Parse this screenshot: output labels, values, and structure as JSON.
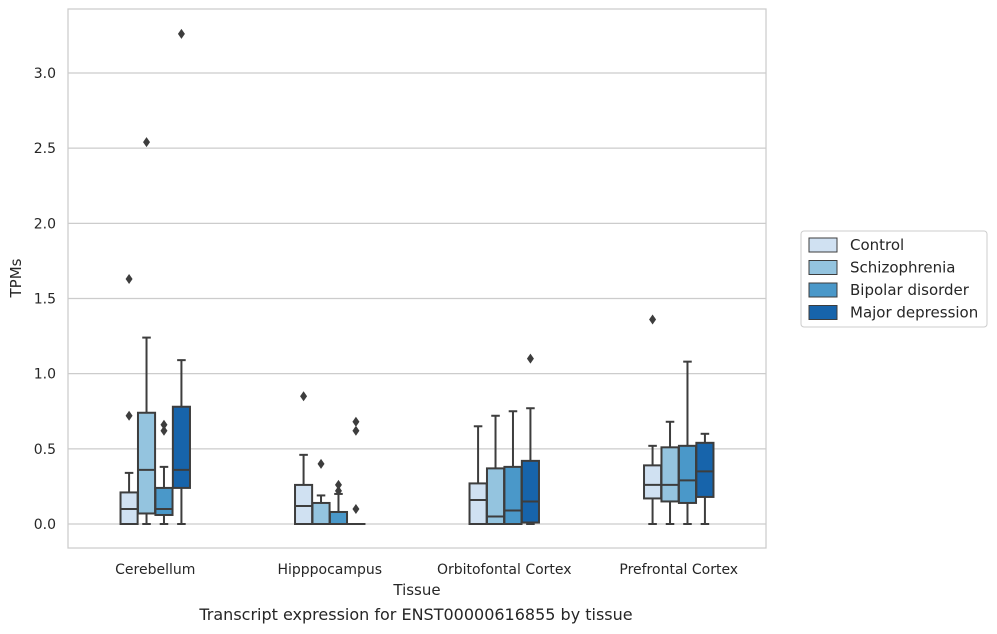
{
  "caption": "Transcript expression for ENST00000616855 by tissue",
  "chart_data": {
    "type": "box",
    "title": "",
    "xlabel": "Tissue",
    "ylabel": "TPMs",
    "ylim": [
      -0.16,
      3.43
    ],
    "yticks": [
      0.0,
      0.5,
      1.0,
      1.5,
      2.0,
      2.5,
      3.0
    ],
    "ytick_labels": [
      "0.0",
      "0.5",
      "1.0",
      "1.5",
      "2.0",
      "2.5",
      "3.0"
    ],
    "grid": "horizontal",
    "legend_position": "right",
    "categories": [
      "Cerebellum",
      "Hipppocampus",
      "Orbitofontal Cortex",
      "Prefrontal Cortex"
    ],
    "series": [
      {
        "name": "Control",
        "color": "#d0e1f2",
        "boxes": [
          {
            "whislo": 0.0,
            "q1": 0.0,
            "med": 0.1,
            "q3": 0.21,
            "whishi": 0.34,
            "fliers": [
              0.72,
              1.63
            ]
          },
          {
            "whislo": 0.0,
            "q1": 0.0,
            "med": 0.12,
            "q3": 0.26,
            "whishi": 0.46,
            "fliers": [
              0.85
            ]
          },
          {
            "whislo": 0.0,
            "q1": 0.0,
            "med": 0.16,
            "q3": 0.27,
            "whishi": 0.65,
            "fliers": []
          },
          {
            "whislo": 0.0,
            "q1": 0.17,
            "med": 0.26,
            "q3": 0.39,
            "whishi": 0.52,
            "fliers": [
              1.36
            ]
          }
        ]
      },
      {
        "name": "Schizophrenia",
        "color": "#94c4df",
        "boxes": [
          {
            "whislo": 0.0,
            "q1": 0.07,
            "med": 0.36,
            "q3": 0.74,
            "whishi": 1.24,
            "fliers": [
              2.54
            ]
          },
          {
            "whislo": 0.0,
            "q1": 0.0,
            "med": 0.0,
            "q3": 0.14,
            "whishi": 0.19,
            "fliers": [
              0.4
            ]
          },
          {
            "whislo": 0.0,
            "q1": 0.0,
            "med": 0.05,
            "q3": 0.37,
            "whishi": 0.72,
            "fliers": []
          },
          {
            "whislo": 0.0,
            "q1": 0.15,
            "med": 0.26,
            "q3": 0.51,
            "whishi": 0.68,
            "fliers": []
          }
        ]
      },
      {
        "name": "Bipolar disorder",
        "color": "#4a98c9",
        "boxes": [
          {
            "whislo": 0.0,
            "q1": 0.06,
            "med": 0.1,
            "q3": 0.24,
            "whishi": 0.38,
            "fliers": [
              0.62,
              0.66
            ]
          },
          {
            "whislo": 0.0,
            "q1": 0.0,
            "med": 0.0,
            "q3": 0.08,
            "whishi": 0.2,
            "fliers": [
              0.22,
              0.26
            ]
          },
          {
            "whislo": 0.0,
            "q1": 0.0,
            "med": 0.09,
            "q3": 0.38,
            "whishi": 0.75,
            "fliers": []
          },
          {
            "whislo": 0.0,
            "q1": 0.14,
            "med": 0.29,
            "q3": 0.52,
            "whishi": 1.08,
            "fliers": []
          }
        ]
      },
      {
        "name": "Major depression",
        "color": "#1764ab",
        "boxes": [
          {
            "whislo": 0.0,
            "q1": 0.24,
            "med": 0.36,
            "q3": 0.78,
            "whishi": 1.09,
            "fliers": [
              3.26
            ]
          },
          {
            "whislo": 0.0,
            "q1": 0.0,
            "med": 0.0,
            "q3": 0.0,
            "whishi": 0.0,
            "fliers": [
              0.1,
              0.62,
              0.68
            ]
          },
          {
            "whislo": 0.0,
            "q1": 0.01,
            "med": 0.15,
            "q3": 0.42,
            "whishi": 0.77,
            "fliers": [
              1.1
            ]
          },
          {
            "whislo": 0.0,
            "q1": 0.18,
            "med": 0.35,
            "q3": 0.54,
            "whishi": 0.6,
            "fliers": []
          }
        ]
      }
    ]
  }
}
